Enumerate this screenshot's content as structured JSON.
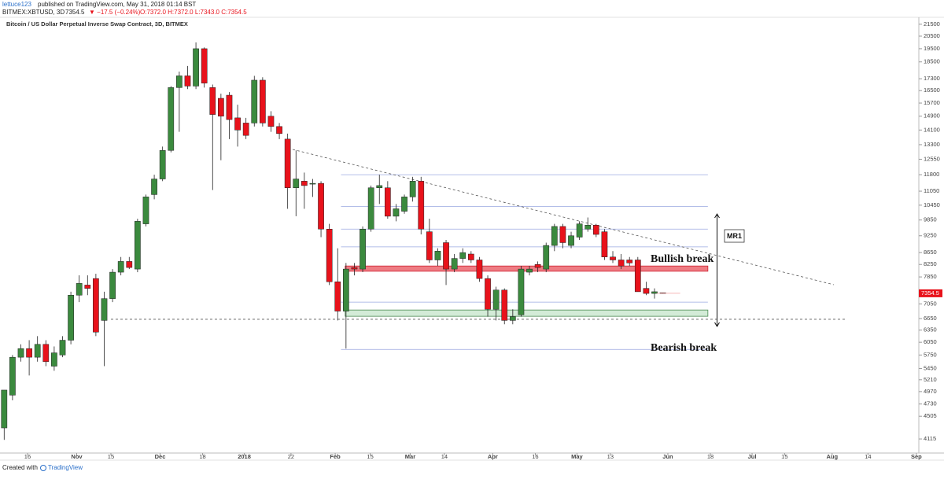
{
  "header": {
    "publisher": "lettuce123",
    "published": "published on TradingView.com, May 31, 2018 01:14 BST",
    "symbol": "BITMEX:XBTUSD, 3D",
    "last": "7354.5",
    "change": "▼ −17.5 (−0.24%)",
    "ohlc": "O:7372.0 H:7372.0 L:7343.0 C:7354.5"
  },
  "footer": {
    "created": "Created with",
    "brand": "TradingView"
  },
  "chart_data": {
    "type": "candlestick",
    "title": "Bitcoin / US Dollar Perpetual Inverse Swap Contract, 3D, BITMEX",
    "log_scale": true,
    "grid": false,
    "up_color": "#3b8a3e",
    "down_color": "#e8121b",
    "open": [
      4300,
      4900,
      5700,
      5900,
      5700,
      6000,
      5500,
      5750,
      6100,
      7300,
      7600,
      7800,
      6600,
      7200,
      8000,
      8350,
      8100,
      9700,
      10900,
      11600,
      13000,
      16700,
      17500,
      16800,
      19500,
      16700,
      16000,
      16200,
      14800,
      14500,
      14500,
      17200,
      14900,
      14300,
      13600,
      11200,
      11500,
      11400,
      11400,
      9500,
      7700,
      6850,
      8150,
      8100,
      9500,
      11200,
      11200,
      10000,
      10200,
      10800,
      11500,
      9400,
      8400,
      9000,
      8100,
      8450,
      8600,
      8400,
      7800,
      6900,
      7450,
      6600,
      6750,
      8000,
      8250,
      8100,
      8900,
      9600,
      8900,
      9200,
      9500,
      9650,
      9400,
      8500,
      8400,
      8400,
      8400,
      7500,
      7350,
      7372
    ],
    "high": [
      5000,
      5750,
      6000,
      6100,
      6200,
      6100,
      5950,
      6200,
      7400,
      7900,
      7900,
      7950,
      7400,
      8100,
      8500,
      8500,
      9900,
      10900,
      11800,
      13200,
      16800,
      17800,
      18200,
      20000,
      19600,
      16900,
      16300,
      16400,
      15600,
      14800,
      17500,
      17400,
      15200,
      14500,
      13900,
      13000,
      11900,
      11600,
      11500,
      9700,
      8800,
      8300,
      8300,
      9600,
      11300,
      11800,
      11500,
      10500,
      10900,
      11700,
      11700,
      9900,
      8800,
      9100,
      8600,
      8800,
      8700,
      8500,
      7900,
      7550,
      7500,
      6900,
      8200,
      8200,
      8350,
      9000,
      9700,
      9700,
      9400,
      9800,
      9950,
      9700,
      9500,
      8700,
      8600,
      8500,
      8500,
      7700,
      7500,
      7372
    ],
    "low": [
      4100,
      4800,
      5600,
      5300,
      5600,
      5500,
      5400,
      5700,
      6000,
      7100,
      7300,
      6200,
      5500,
      7100,
      7900,
      8100,
      8000,
      9600,
      10700,
      11500,
      12900,
      14000,
      16600,
      16600,
      16700,
      11100,
      12500,
      13600,
      13200,
      13600,
      14300,
      14300,
      14000,
      13600,
      10300,
      10000,
      10300,
      10800,
      9200,
      7600,
      6600,
      5900,
      7900,
      8000,
      9400,
      10500,
      9900,
      9800,
      10100,
      10600,
      9300,
      8300,
      8200,
      7600,
      8000,
      8300,
      8300,
      7700,
      6700,
      6600,
      6500,
      6500,
      6700,
      7900,
      8000,
      8000,
      8700,
      8800,
      8800,
      9100,
      9400,
      9200,
      8400,
      8300,
      8100,
      8200,
      7400,
      7300,
      7200,
      7343
    ],
    "close": [
      5000,
      5700,
      5900,
      5700,
      6000,
      5600,
      5800,
      6100,
      7300,
      7650,
      7500,
      6300,
      7200,
      8000,
      8350,
      8150,
      9800,
      10800,
      11600,
      13000,
      16700,
      17500,
      16800,
      19500,
      17000,
      15000,
      14900,
      14700,
      14100,
      13800,
      17200,
      14500,
      14300,
      13900,
      11200,
      11600,
      11300,
      11400,
      9500,
      7700,
      6850,
      8100,
      8100,
      9500,
      11200,
      11300,
      10000,
      10300,
      10800,
      11500,
      9500,
      8400,
      8700,
      8100,
      8450,
      8650,
      8400,
      7800,
      6900,
      7450,
      6600,
      6700,
      8100,
      8100,
      8150,
      8900,
      9600,
      9000,
      9250,
      9700,
      9650,
      9300,
      8500,
      8400,
      8200,
      8300,
      7400,
      7350,
      7400,
      7354.5
    ],
    "xlim": [
      -0.5,
      109.7
    ],
    "xticks": [
      {
        "value": 2.8,
        "label": "16"
      },
      {
        "value": 8.7,
        "label": "Nov"
      },
      {
        "value": 12.8,
        "label": "15"
      },
      {
        "value": 18.7,
        "label": "Dec"
      },
      {
        "value": 23.8,
        "label": "18"
      },
      {
        "value": 28.8,
        "label": "2018"
      },
      {
        "value": 34.4,
        "label": "22"
      },
      {
        "value": 39.7,
        "label": "Feb"
      },
      {
        "value": 43.9,
        "label": "15"
      },
      {
        "value": 48.7,
        "label": "Mar"
      },
      {
        "value": 52.8,
        "label": "14"
      },
      {
        "value": 58.6,
        "label": "Apr"
      },
      {
        "value": 63.7,
        "label": "16"
      },
      {
        "value": 68.7,
        "label": "May"
      },
      {
        "value": 72.7,
        "label": "13"
      },
      {
        "value": 79.6,
        "label": "Jun"
      },
      {
        "value": 84.7,
        "label": "18"
      },
      {
        "value": 89.7,
        "label": "Jul"
      },
      {
        "value": 93.6,
        "label": "15"
      },
      {
        "value": 99.3,
        "label": "Aug"
      },
      {
        "value": 103.6,
        "label": "14"
      },
      {
        "value": 109.4,
        "label": "Sep"
      }
    ],
    "ylim": [
      3890,
      22100
    ],
    "yticks": [
      21500,
      20500,
      19500,
      18500,
      17300,
      16500,
      15700,
      14900,
      14100,
      13300,
      12550,
      11800,
      11050,
      10450,
      9850,
      9250,
      8650,
      8250,
      7850,
      7050,
      6650,
      6350,
      6050,
      5750,
      5450,
      5210,
      4970,
      4730,
      4505,
      4115
    ],
    "levels": [
      11800,
      10400,
      9500,
      8850,
      7100,
      5880
    ],
    "levels_span": [
      40.4,
      84.4
    ],
    "resistance_zone": [
      8030,
      8200
    ],
    "support_zone": [
      6710,
      6880
    ],
    "zones_span": [
      40.9,
      84.4
    ],
    "support_line": {
      "value": 6630,
      "span": [
        12.8,
        101
      ]
    },
    "trendline": [
      [
        34.6,
        13050
      ],
      [
        99.5,
        7610
      ]
    ],
    "range_arrow": {
      "x": 85.5,
      "range": [
        10090,
        6445
      ]
    },
    "annotations": [
      "MR1",
      "Bullish break",
      "Bearish break"
    ]
  }
}
